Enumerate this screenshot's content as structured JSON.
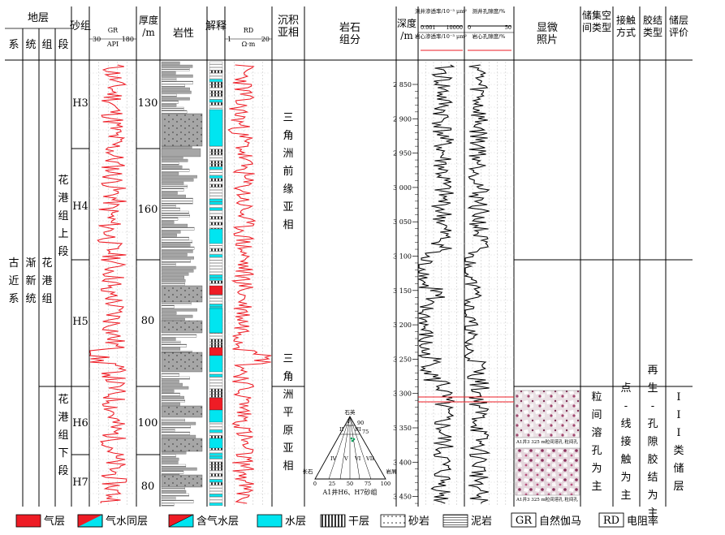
{
  "headers": {
    "strata": "地层",
    "xi": "系",
    "tong": "统",
    "zu": "组",
    "duan": "段",
    "sand_group": "砂组",
    "gr_label": "GR",
    "gr_unit": "API",
    "gr_min": "30",
    "gr_max": "180",
    "thickness": "厚度/m",
    "lithology": "岩性",
    "interpretation": "解释",
    "rd_label": "RD",
    "rd_unit": "Ω·m",
    "rd_min": "1",
    "rd_max": "20",
    "subfacies": "沉积亚相",
    "rock_composition": "岩石组分",
    "depth": "深度/m",
    "perm_log_label": "测井渗透率/10⁻³ μm²",
    "perm_core_label": "岩心渗透率/10⁻³ μm²",
    "perm_min": "0.001",
    "perm_max": "10000",
    "por_log_label": "测井孔隙度/%",
    "por_core_label": "岩心孔隙度/%",
    "por_min": "0",
    "por_max": "50",
    "micro_photo": "显微照片",
    "space_type": "储集空间类型",
    "contact_type": "接触方式",
    "cement_type": "胶结类型",
    "evaluation": "储层评价"
  },
  "strata": {
    "system": "古近系",
    "series": "渐新统",
    "formation": "花港组",
    "upper_member": "花港组上段",
    "lower_member": "花港组下段"
  },
  "sand_groups": [
    {
      "name": "H3",
      "thickness": "130"
    },
    {
      "name": "H4",
      "thickness": "160"
    },
    {
      "name": "H5",
      "thickness": "80"
    },
    {
      "name": "H6",
      "thickness": "100"
    },
    {
      "name": "H7",
      "thickness": "80"
    }
  ],
  "facies": {
    "upper": "三角洲前缘亚相",
    "lower": "三角洲平原亚相"
  },
  "depth_ticks": [
    "2 850",
    "2 900",
    "2 950",
    "3 000",
    "3 050",
    "3 100",
    "3 150",
    "3 200",
    "3 250",
    "3 300",
    "3 350",
    "3 400",
    "3 450"
  ],
  "ternary": {
    "apex_top": "石英",
    "left": "长石",
    "right": "岩屑",
    "top_labels": [
      "90",
      "75"
    ],
    "zone_labels": [
      "I",
      "II",
      "III",
      "IV",
      "V",
      "VI",
      "VII"
    ],
    "base_ticks": [
      "0",
      "25",
      "50",
      "75",
      "100"
    ],
    "caption": "A1井H6、H7砂组"
  },
  "photos": [
    {
      "caption": "A1井3 325 m粒间溶孔 粒间孔"
    },
    {
      "caption": "A1井3 325 m粒间溶孔 粒间孔"
    }
  ],
  "lower_reservoir": {
    "space_type": "粒间溶孔为主",
    "contact_type": "点-线接触为主",
    "cement_type": "再生-孔隙胶结为主",
    "evaluation": "III类储层"
  },
  "legend": [
    {
      "key": "gas",
      "label": "气层",
      "color": "#ee1c25"
    },
    {
      "key": "gas_water",
      "label": "气水同层",
      "color": "#ee1c25"
    },
    {
      "key": "gas_bearing_water",
      "label": "含气水层",
      "color": "#00e5f0"
    },
    {
      "key": "water",
      "label": "水层",
      "color": "#00e5f0"
    },
    {
      "key": "dry",
      "label": "干层"
    },
    {
      "key": "sandstone",
      "label": "砂岩"
    },
    {
      "key": "mudstone",
      "label": "泥岩"
    },
    {
      "key": "gr",
      "abbr": "GR",
      "label": "自然伽马"
    },
    {
      "key": "rd",
      "abbr": "RD",
      "label": "电阻率"
    }
  ],
  "colors": {
    "curve_red": "#ee1c25",
    "cyan": "#00e5f0",
    "sand_gray": "#a6a6a6"
  }
}
